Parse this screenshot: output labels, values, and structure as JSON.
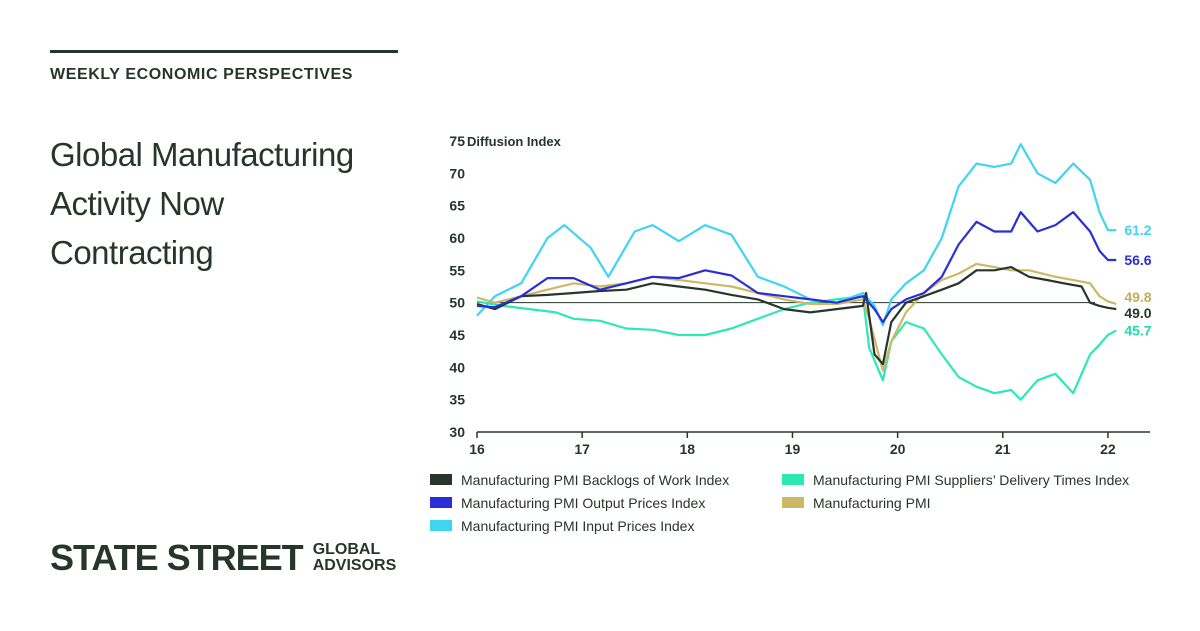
{
  "header": {
    "kicker": "WEEKLY ECONOMIC PERSPECTIVES"
  },
  "headline": {
    "line1": "Global Manufacturing",
    "line2": "Activity Now",
    "line3": "Contracting"
  },
  "brand": {
    "main": "STATE STREET",
    "sub1": "GLOBAL",
    "sub2": "ADVISORS"
  },
  "chart_data": {
    "type": "line",
    "ylabel": "Diffusion Index",
    "xlim": [
      2016,
      2022.4
    ],
    "ylim": [
      30,
      75
    ],
    "yticks": [
      "30",
      "35",
      "40",
      "45",
      "50",
      "55",
      "60",
      "65",
      "70",
      "75"
    ],
    "xticks": [
      "16",
      "17",
      "18",
      "19",
      "20",
      "21",
      "22"
    ],
    "reference_line": 50,
    "grid": false,
    "legend_position": "bottom",
    "series": [
      {
        "name": "Manufacturing PMI Backlogs of Work Index",
        "color": "#27362c",
        "end_label": "49.0",
        "values": [
          [
            2016.0,
            49.8
          ],
          [
            2016.17,
            49.0
          ],
          [
            2016.42,
            51.0
          ],
          [
            2016.67,
            51.2
          ],
          [
            2016.92,
            51.5
          ],
          [
            2017.17,
            51.8
          ],
          [
            2017.42,
            52.0
          ],
          [
            2017.67,
            53.0
          ],
          [
            2017.92,
            52.5
          ],
          [
            2018.17,
            52.0
          ],
          [
            2018.42,
            51.2
          ],
          [
            2018.67,
            50.5
          ],
          [
            2018.92,
            49.0
          ],
          [
            2019.17,
            48.5
          ],
          [
            2019.42,
            49.0
          ],
          [
            2019.67,
            49.5
          ],
          [
            2019.7,
            51.5
          ],
          [
            2019.78,
            42.0
          ],
          [
            2019.86,
            40.5
          ],
          [
            2019.94,
            47.0
          ],
          [
            2020.08,
            50.0
          ],
          [
            2020.25,
            51.0
          ],
          [
            2020.42,
            52.0
          ],
          [
            2020.58,
            53.0
          ],
          [
            2020.75,
            55.0
          ],
          [
            2020.92,
            55.0
          ],
          [
            2021.08,
            55.5
          ],
          [
            2021.25,
            54.0
          ],
          [
            2021.42,
            53.5
          ],
          [
            2021.58,
            53.0
          ],
          [
            2021.75,
            52.5
          ],
          [
            2021.83,
            50.0
          ],
          [
            2021.92,
            49.5
          ],
          [
            2022.0,
            49.2
          ],
          [
            2022.08,
            49.0
          ]
        ]
      },
      {
        "name": "Manufacturing PMI Output Prices Index",
        "color": "#2b2ed6",
        "end_label": "56.6",
        "values": [
          [
            2016.0,
            49.5
          ],
          [
            2016.17,
            49.3
          ],
          [
            2016.42,
            51.0
          ],
          [
            2016.67,
            53.8
          ],
          [
            2016.92,
            53.8
          ],
          [
            2017.17,
            52.0
          ],
          [
            2017.42,
            53.0
          ],
          [
            2017.67,
            54.0
          ],
          [
            2017.92,
            53.8
          ],
          [
            2018.17,
            55.0
          ],
          [
            2018.42,
            54.2
          ],
          [
            2018.67,
            51.5
          ],
          [
            2018.92,
            51.0
          ],
          [
            2019.17,
            50.5
          ],
          [
            2019.42,
            50.0
          ],
          [
            2019.67,
            51.0
          ],
          [
            2019.78,
            49.0
          ],
          [
            2019.86,
            47.0
          ],
          [
            2019.94,
            49.0
          ],
          [
            2020.08,
            50.5
          ],
          [
            2020.25,
            51.5
          ],
          [
            2020.42,
            54.0
          ],
          [
            2020.58,
            59.0
          ],
          [
            2020.75,
            62.5
          ],
          [
            2020.92,
            61.0
          ],
          [
            2021.08,
            61.0
          ],
          [
            2021.17,
            64.0
          ],
          [
            2021.33,
            61.0
          ],
          [
            2021.5,
            62.0
          ],
          [
            2021.67,
            64.0
          ],
          [
            2021.83,
            61.0
          ],
          [
            2021.92,
            58.0
          ],
          [
            2022.0,
            56.6
          ],
          [
            2022.08,
            56.6
          ]
        ]
      },
      {
        "name": "Manufacturing PMI Input Prices Index",
        "color": "#3fd4f2",
        "end_label": "61.2",
        "values": [
          [
            2016.0,
            48.0
          ],
          [
            2016.17,
            51.0
          ],
          [
            2016.42,
            53.0
          ],
          [
            2016.67,
            60.0
          ],
          [
            2016.83,
            62.0
          ],
          [
            2017.08,
            58.5
          ],
          [
            2017.25,
            54.0
          ],
          [
            2017.5,
            61.0
          ],
          [
            2017.67,
            62.0
          ],
          [
            2017.92,
            59.5
          ],
          [
            2018.17,
            62.0
          ],
          [
            2018.42,
            60.5
          ],
          [
            2018.67,
            54.0
          ],
          [
            2018.92,
            52.5
          ],
          [
            2019.17,
            50.5
          ],
          [
            2019.42,
            50.0
          ],
          [
            2019.67,
            51.5
          ],
          [
            2019.78,
            49.5
          ],
          [
            2019.86,
            46.5
          ],
          [
            2019.94,
            50.5
          ],
          [
            2020.08,
            53.0
          ],
          [
            2020.25,
            55.0
          ],
          [
            2020.42,
            60.0
          ],
          [
            2020.58,
            68.0
          ],
          [
            2020.75,
            71.5
          ],
          [
            2020.92,
            71.0
          ],
          [
            2021.08,
            71.5
          ],
          [
            2021.17,
            74.5
          ],
          [
            2021.33,
            70.0
          ],
          [
            2021.5,
            68.5
          ],
          [
            2021.67,
            71.5
          ],
          [
            2021.83,
            69.0
          ],
          [
            2021.92,
            64.0
          ],
          [
            2022.0,
            61.2
          ],
          [
            2022.08,
            61.2
          ]
        ]
      },
      {
        "name": "Manufacturing PMI Suppliers’ Delivery Times Index",
        "color": "#2ee8b4",
        "end_label": "45.7",
        "values": [
          [
            2016.0,
            50.2
          ],
          [
            2016.25,
            49.5
          ],
          [
            2016.5,
            49.0
          ],
          [
            2016.75,
            48.5
          ],
          [
            2016.92,
            47.5
          ],
          [
            2017.17,
            47.2
          ],
          [
            2017.42,
            46.0
          ],
          [
            2017.67,
            45.8
          ],
          [
            2017.92,
            45.0
          ],
          [
            2018.17,
            45.0
          ],
          [
            2018.42,
            46.0
          ],
          [
            2018.67,
            47.5
          ],
          [
            2018.92,
            49.0
          ],
          [
            2019.17,
            50.0
          ],
          [
            2019.42,
            50.5
          ],
          [
            2019.67,
            51.0
          ],
          [
            2019.73,
            43.0
          ],
          [
            2019.86,
            38.0
          ],
          [
            2019.94,
            44.0
          ],
          [
            2020.08,
            47.0
          ],
          [
            2020.25,
            46.0
          ],
          [
            2020.42,
            42.0
          ],
          [
            2020.58,
            38.5
          ],
          [
            2020.75,
            37.0
          ],
          [
            2020.92,
            36.0
          ],
          [
            2021.08,
            36.5
          ],
          [
            2021.17,
            35.0
          ],
          [
            2021.33,
            38.0
          ],
          [
            2021.5,
            39.0
          ],
          [
            2021.67,
            36.0
          ],
          [
            2021.83,
            42.0
          ],
          [
            2021.92,
            43.5
          ],
          [
            2022.0,
            45.0
          ],
          [
            2022.08,
            45.7
          ]
        ]
      },
      {
        "name": "Manufacturing PMI",
        "color": "#cdb865",
        "end_label": "49.8",
        "values": [
          [
            2016.0,
            50.8
          ],
          [
            2016.17,
            50.0
          ],
          [
            2016.42,
            51.0
          ],
          [
            2016.67,
            52.0
          ],
          [
            2016.92,
            53.0
          ],
          [
            2017.17,
            52.5
          ],
          [
            2017.42,
            53.0
          ],
          [
            2017.67,
            54.0
          ],
          [
            2017.92,
            53.5
          ],
          [
            2018.17,
            53.0
          ],
          [
            2018.42,
            52.5
          ],
          [
            2018.67,
            51.5
          ],
          [
            2018.92,
            50.5
          ],
          [
            2019.17,
            49.8
          ],
          [
            2019.42,
            49.8
          ],
          [
            2019.67,
            50.5
          ],
          [
            2019.73,
            47.5
          ],
          [
            2019.86,
            39.5
          ],
          [
            2019.94,
            44.0
          ],
          [
            2020.08,
            48.5
          ],
          [
            2020.25,
            51.5
          ],
          [
            2020.42,
            53.5
          ],
          [
            2020.58,
            54.5
          ],
          [
            2020.75,
            56.0
          ],
          [
            2020.92,
            55.5
          ],
          [
            2021.08,
            55.0
          ],
          [
            2021.25,
            55.0
          ],
          [
            2021.5,
            54.0
          ],
          [
            2021.67,
            53.5
          ],
          [
            2021.83,
            53.0
          ],
          [
            2021.92,
            51.0
          ],
          [
            2022.0,
            50.2
          ],
          [
            2022.08,
            49.8
          ]
        ]
      }
    ]
  }
}
